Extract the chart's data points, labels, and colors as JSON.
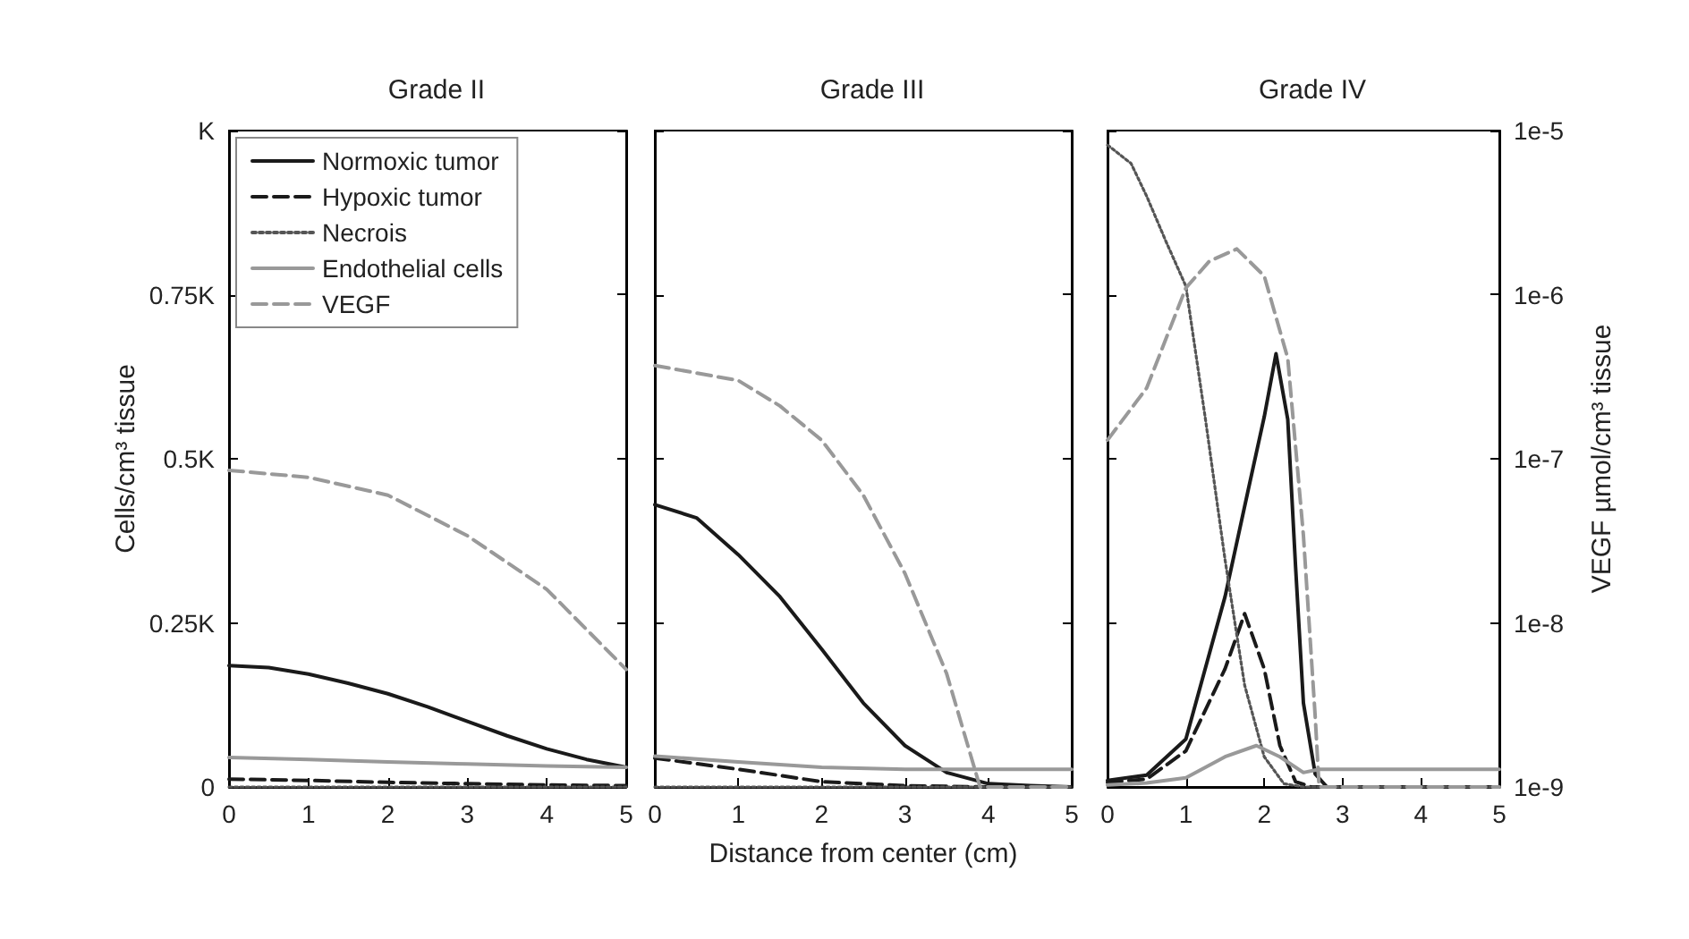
{
  "chart_data": [
    {
      "type": "line",
      "title": "Grade II",
      "ylabel": "Cells/cm³ tissue",
      "xlim": [
        0,
        5
      ],
      "xticks": [
        0,
        1,
        2,
        3,
        4,
        5
      ],
      "ylim": [
        0,
        1
      ],
      "yticks": [
        0,
        {
          "value": 0.25,
          "label": "0.25K"
        },
        {
          "value": 0.5,
          "label": "0.5K"
        },
        {
          "value": 0.75,
          "label": "0.75K"
        },
        {
          "value": 1,
          "label": "K"
        }
      ],
      "y2lim": [
        1e-09,
        1e-05
      ],
      "log": "y2",
      "grid": false,
      "legend": "top left",
      "series": [
        {
          "name": "Normoxic tumor",
          "color": "#1a1a1a",
          "line_style": "solid",
          "x": [
            0,
            0.5,
            1,
            1.5,
            2,
            2.5,
            3,
            3.5,
            4,
            4.5,
            5
          ],
          "values": [
            0.185,
            0.182,
            0.172,
            0.158,
            0.142,
            0.122,
            0.1,
            0.078,
            0.058,
            0.042,
            0.03
          ]
        },
        {
          "name": "Hypoxic tumor",
          "color": "#1a1a1a",
          "line_style": "dashed",
          "x": [
            0,
            1,
            2,
            3,
            4,
            5
          ],
          "values": [
            0.012,
            0.01,
            0.007,
            0.005,
            0.003,
            0.002
          ]
        },
        {
          "name": "Necrois",
          "color": "#555555",
          "line_style": "dotted",
          "x": [
            0,
            5
          ],
          "values": [
            0,
            0
          ]
        },
        {
          "name": "Endothelial cells",
          "color": "#999999",
          "line_style": "solid",
          "x": [
            0,
            1,
            2,
            3,
            4,
            5
          ],
          "values": [
            0.045,
            0.042,
            0.038,
            0.035,
            0.032,
            0.03
          ]
        },
        {
          "name": "VEGF",
          "color": "#999999",
          "line_style": "dashed",
          "axis": "y2",
          "x": [
            0,
            1,
            2,
            3,
            4,
            5
          ],
          "values": [
            8.5e-08,
            7.7e-08,
            6e-08,
            3.4e-08,
            1.6e-08,
            5.2e-09
          ]
        }
      ]
    },
    {
      "type": "line",
      "title": "Grade III",
      "xlabel": "Distance from center (cm)",
      "xlim": [
        0,
        5
      ],
      "xticks": [
        0,
        1,
        2,
        3,
        4,
        5
      ],
      "ylim": [
        0,
        1
      ],
      "y2lim": [
        1e-09,
        1e-05
      ],
      "log": "y2",
      "tick_labels": "x",
      "grid": false,
      "series": [
        {
          "color": "#1a1a1a",
          "line_style": "solid",
          "x": [
            0,
            0.5,
            1,
            1.5,
            2,
            2.5,
            3,
            3.5,
            4,
            4.5,
            5
          ],
          "values": [
            0.43,
            0.41,
            0.354,
            0.29,
            0.21,
            0.128,
            0.063,
            0.022,
            0.005,
            0.002,
            0
          ]
        },
        {
          "color": "#1a1a1a",
          "line_style": "dashed",
          "x": [
            0,
            1,
            2,
            3,
            4,
            5
          ],
          "values": [
            0.044,
            0.027,
            0.008,
            0.002,
            0,
            0
          ]
        },
        {
          "color": "#555555",
          "line_style": "dotted",
          "x": [
            0,
            5
          ],
          "values": [
            0,
            0
          ]
        },
        {
          "color": "#999999",
          "line_style": "solid",
          "x": [
            0,
            1,
            2,
            3,
            4,
            5
          ],
          "values": [
            0.047,
            0.038,
            0.03,
            0.027,
            0.027,
            0.027
          ]
        },
        {
          "color": "#999999",
          "line_style": "dashed",
          "axis": "y2",
          "x": [
            0,
            1,
            1.5,
            2,
            2.5,
            3,
            3.5,
            3.9,
            5
          ],
          "values": [
            3.7e-07,
            3e-07,
            2.1e-07,
            1.3e-07,
            6e-08,
            2e-08,
            4.9e-09,
            1e-09,
            1e-09
          ]
        }
      ]
    },
    {
      "type": "line",
      "title": "Grade IV",
      "y2label": "VEGF µmol/cm³ tissue",
      "xlim": [
        0,
        5
      ],
      "xticks": [
        0,
        1,
        2,
        3,
        4,
        5
      ],
      "ylim": [
        0,
        1
      ],
      "y2lim": [
        1e-09,
        1e-05
      ],
      "y2ticks": [
        {
          "value": 1e-09,
          "label": "1e-9"
        },
        {
          "value": 1e-08,
          "label": "1e-8"
        },
        {
          "value": 1e-07,
          "label": "1e-7"
        },
        {
          "value": 1e-06,
          "label": "1e-6"
        },
        {
          "value": 1e-05,
          "label": "1e-5"
        }
      ],
      "log": "y2",
      "grid": false,
      "series": [
        {
          "color": "#1a1a1a",
          "line_style": "solid",
          "x": [
            0,
            0.5,
            1,
            1.5,
            1.8,
            2,
            2.15,
            2.3,
            2.4,
            2.5,
            2.65,
            2.8,
            5
          ],
          "values": [
            0.01,
            0.018,
            0.073,
            0.29,
            0.455,
            0.564,
            0.66,
            0.56,
            0.335,
            0.128,
            0.02,
            0,
            0
          ]
        },
        {
          "color": "#1a1a1a",
          "line_style": "dashed",
          "x": [
            0,
            0.5,
            1,
            1.5,
            1.75,
            2,
            2.2,
            2.4,
            2.6,
            5
          ],
          "values": [
            0.007,
            0.012,
            0.055,
            0.18,
            0.264,
            0.18,
            0.063,
            0.008,
            0,
            0
          ]
        },
        {
          "color": "#555555",
          "line_style": "dotted",
          "x": [
            0,
            0.3,
            0.5,
            0.75,
            1,
            1.25,
            1.5,
            1.75,
            2,
            2.25,
            2.5,
            5
          ],
          "values": [
            0.978,
            0.95,
            0.9,
            0.83,
            0.763,
            0.56,
            0.346,
            0.155,
            0.046,
            0.005,
            0,
            0
          ]
        },
        {
          "color": "#999999",
          "line_style": "solid",
          "x": [
            0,
            0.5,
            1,
            1.5,
            1.9,
            2.2,
            2.5,
            2.7,
            5
          ],
          "values": [
            0.003,
            0.006,
            0.014,
            0.046,
            0.063,
            0.046,
            0.022,
            0.027,
            0.027
          ]
        },
        {
          "color": "#999999",
          "line_style": "dashed",
          "axis": "y2",
          "x": [
            0,
            0.5,
            1,
            1.3,
            1.65,
            2,
            2.3,
            2.5,
            2.65,
            2.7,
            5
          ],
          "values": [
            1.3e-07,
            2.7e-07,
            1.1e-06,
            1.6e-06,
            1.9e-06,
            1.3e-06,
            4.1e-07,
            3.4e-08,
            2.7e-09,
            1e-09,
            1e-09
          ]
        }
      ]
    }
  ]
}
